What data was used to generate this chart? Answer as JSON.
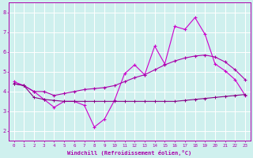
{
  "xlabel": "Windchill (Refroidissement éolien,°C)",
  "bg_color": "#cff0ee",
  "grid_color": "#ffffff",
  "line_color1": "#aa00aa",
  "line_color2": "#cc00cc",
  "line_color3": "#880088",
  "ylim": [
    1.5,
    8.5
  ],
  "xlim": [
    -0.5,
    23.5
  ],
  "yticks": [
    2,
    3,
    4,
    5,
    6,
    7,
    8
  ],
  "xticks": [
    0,
    1,
    2,
    3,
    4,
    5,
    6,
    7,
    8,
    9,
    10,
    11,
    12,
    13,
    14,
    15,
    16,
    17,
    18,
    19,
    20,
    21,
    22,
    23
  ],
  "series1_x": [
    0,
    1,
    2,
    3,
    4,
    5,
    6,
    7,
    8,
    9,
    10,
    11,
    12,
    13,
    14,
    15,
    16,
    17,
    18,
    19,
    20,
    21,
    22,
    23
  ],
  "series1_y": [
    4.5,
    4.3,
    4.0,
    3.6,
    3.2,
    3.5,
    3.5,
    3.3,
    2.2,
    2.6,
    3.55,
    4.9,
    5.35,
    4.85,
    6.3,
    5.4,
    7.3,
    7.15,
    7.75,
    6.9,
    5.4,
    5.05,
    4.6,
    3.8
  ],
  "series2_x": [
    0,
    1,
    2,
    3,
    4,
    5,
    6,
    7,
    8,
    9,
    10,
    11,
    12,
    13,
    14,
    15,
    16,
    17,
    18,
    19,
    20,
    21,
    22,
    23
  ],
  "series2_y": [
    4.4,
    4.3,
    4.0,
    4.0,
    3.8,
    3.9,
    4.0,
    4.1,
    4.15,
    4.2,
    4.3,
    4.5,
    4.7,
    4.85,
    5.1,
    5.35,
    5.55,
    5.7,
    5.8,
    5.85,
    5.75,
    5.5,
    5.1,
    4.6
  ],
  "series3_x": [
    0,
    1,
    2,
    3,
    4,
    5,
    6,
    7,
    8,
    9,
    10,
    11,
    12,
    13,
    14,
    15,
    16,
    17,
    18,
    19,
    20,
    21,
    22,
    23
  ],
  "series3_y": [
    4.4,
    4.3,
    3.7,
    3.6,
    3.55,
    3.5,
    3.5,
    3.5,
    3.5,
    3.5,
    3.5,
    3.5,
    3.5,
    3.5,
    3.5,
    3.5,
    3.5,
    3.55,
    3.6,
    3.65,
    3.7,
    3.75,
    3.8,
    3.85
  ]
}
